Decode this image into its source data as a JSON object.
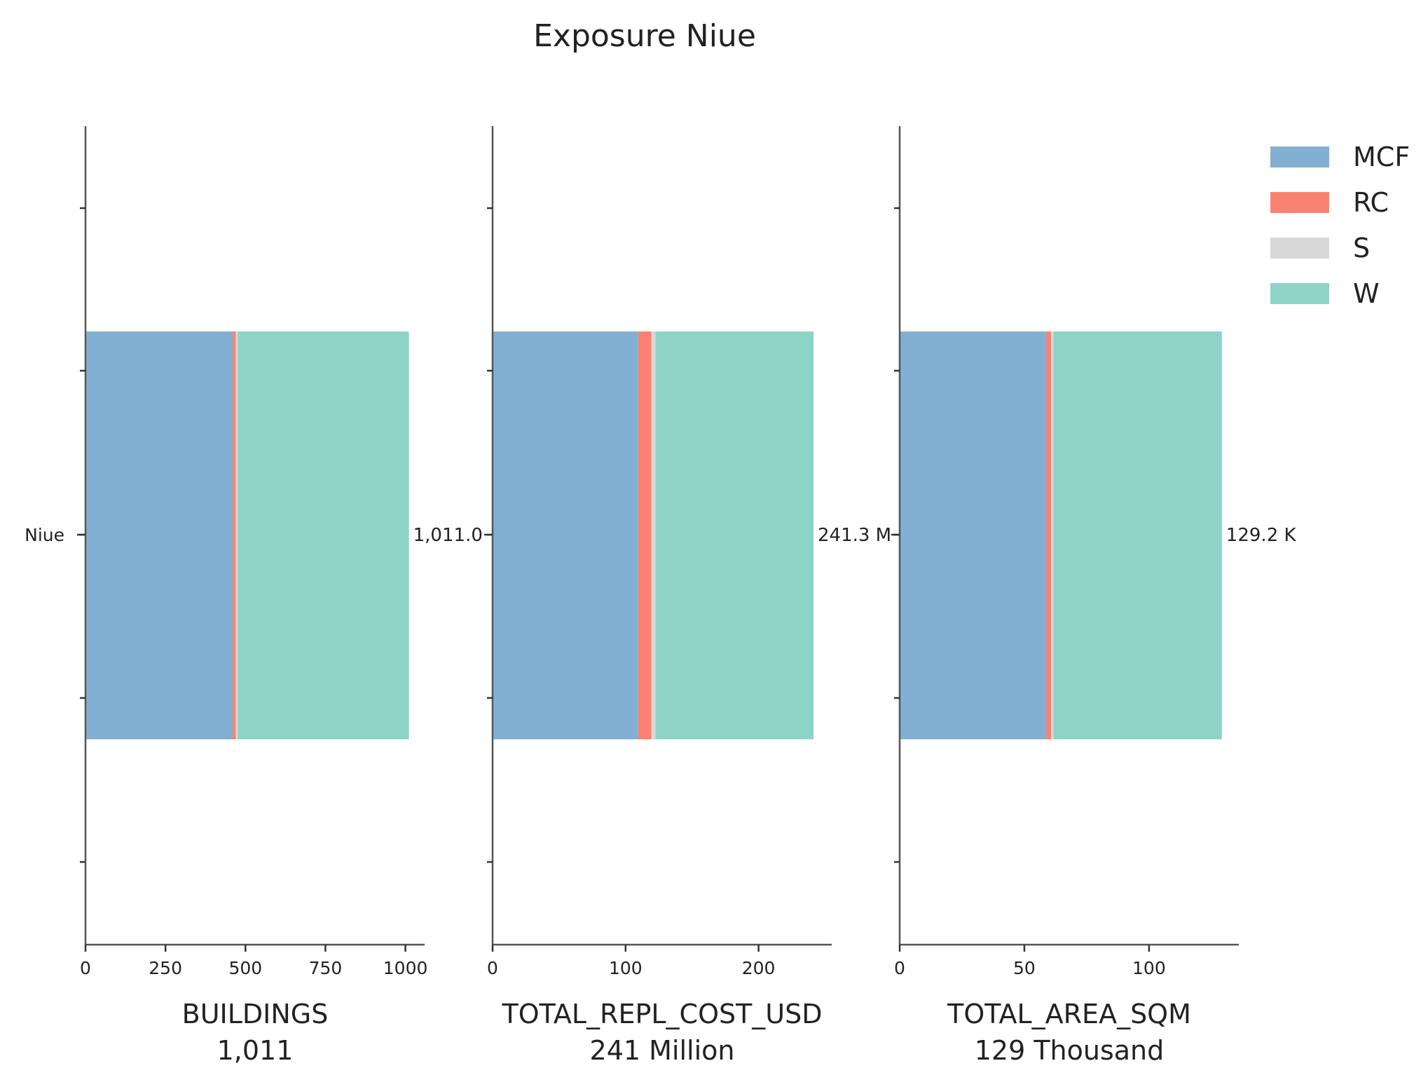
{
  "chart_data": {
    "type": "bar",
    "orientation": "horizontal",
    "stacked": true,
    "title": "Exposure Niue",
    "categories": [
      "Niue"
    ],
    "legend": {
      "placement": "top-right",
      "entries": [
        "MCF",
        "RC",
        "S",
        "W"
      ]
    },
    "colors": {
      "MCF": "#82b0d2",
      "RC": "#fa8272",
      "S": "#d8d8d8",
      "W": "#8ed3c7"
    },
    "grid": false,
    "panels": [
      {
        "xlabel": "BUILDINGS",
        "total_label": "1,011",
        "bar_label": "1,011.0",
        "xlim": [
          0,
          1060
        ],
        "xticks": [
          0,
          250,
          500,
          750,
          1000
        ],
        "series": [
          {
            "name": "MCF",
            "values": [
              460
            ]
          },
          {
            "name": "RC",
            "values": [
              10
            ]
          },
          {
            "name": "S",
            "values": [
              6
            ]
          },
          {
            "name": "W",
            "values": [
              535
            ]
          }
        ]
      },
      {
        "xlabel": "TOTAL_REPL_COST_USD",
        "total_label": "241 Million",
        "bar_label": "241.3 M",
        "xlim": [
          0,
          255
        ],
        "xticks": [
          0,
          100,
          200
        ],
        "series": [
          {
            "name": "MCF",
            "values": [
              109.5
            ]
          },
          {
            "name": "RC",
            "values": [
              10
            ]
          },
          {
            "name": "S",
            "values": [
              3
            ]
          },
          {
            "name": "W",
            "values": [
              118.8
            ]
          }
        ]
      },
      {
        "xlabel": "TOTAL_AREA_SQM",
        "total_label": "129 Thousand",
        "bar_label": "129.2 K",
        "xlim": [
          0,
          136
        ],
        "xticks": [
          0,
          50,
          100
        ],
        "series": [
          {
            "name": "MCF",
            "values": [
              58.7
            ]
          },
          {
            "name": "RC",
            "values": [
              2
            ]
          },
          {
            "name": "S",
            "values": [
              1
            ]
          },
          {
            "name": "W",
            "values": [
              67.5
            ]
          }
        ]
      }
    ]
  }
}
